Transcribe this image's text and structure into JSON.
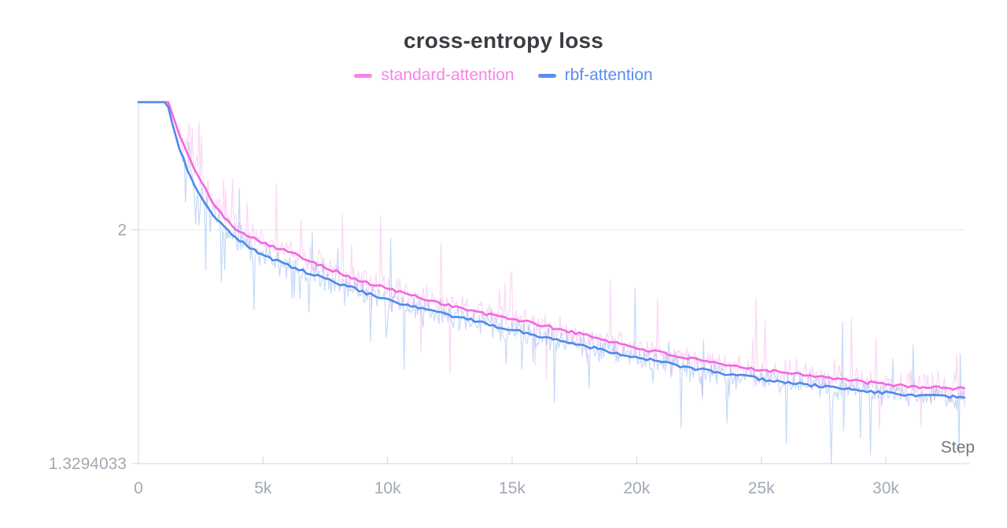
{
  "chart": {
    "title": "cross-entropy loss"
  },
  "chart_data": {
    "type": "line",
    "title": "cross-entropy loss",
    "xlabel": "Step",
    "ylabel": "",
    "legend_position": "top-center",
    "grid": "single horizontal gridline at y=2",
    "x_range": [
      0,
      33200
    ],
    "y_axis": {
      "min": 1.3294033,
      "max": 2.3658,
      "min_label": "1.3294033"
    },
    "x_ticks": [
      {
        "step": 0,
        "label": "0"
      },
      {
        "step": 5000,
        "label": "5k"
      },
      {
        "step": 10000,
        "label": "10k"
      },
      {
        "step": 15000,
        "label": "15k"
      },
      {
        "step": 20000,
        "label": "20k"
      },
      {
        "step": 25000,
        "label": "25k"
      },
      {
        "step": 30000,
        "label": "30k"
      }
    ],
    "y_ticks": [
      {
        "value": 2,
        "label": "2"
      },
      {
        "value": 1.3294033,
        "label": "1.3294033"
      }
    ],
    "series": [
      {
        "name": "standard-attention",
        "color": "#f566dc",
        "legend_color": "#f884e8",
        "smoothed": [
          [
            0,
            2.3658
          ],
          [
            1200,
            2.3658
          ],
          [
            1500,
            2.302
          ],
          [
            1800,
            2.245
          ],
          [
            2100,
            2.196
          ],
          [
            2400,
            2.152
          ],
          [
            2700,
            2.114
          ],
          [
            3000,
            2.078
          ],
          [
            3400,
            2.038
          ],
          [
            3800,
            2.008
          ],
          [
            4200,
            1.992
          ],
          [
            4600,
            1.977
          ],
          [
            5000,
            1.964
          ],
          [
            5500,
            1.95
          ],
          [
            6000,
            1.937
          ],
          [
            6500,
            1.923
          ],
          [
            7000,
            1.909
          ],
          [
            7500,
            1.893
          ],
          [
            8000,
            1.878
          ],
          [
            8500,
            1.863
          ],
          [
            9000,
            1.851
          ],
          [
            9500,
            1.841
          ],
          [
            10000,
            1.832
          ],
          [
            11000,
            1.811
          ],
          [
            12000,
            1.792
          ],
          [
            13000,
            1.774
          ],
          [
            14000,
            1.757
          ],
          [
            15000,
            1.745
          ],
          [
            16000,
            1.729
          ],
          [
            17000,
            1.713
          ],
          [
            18000,
            1.697
          ],
          [
            19000,
            1.679
          ],
          [
            20000,
            1.661
          ],
          [
            21000,
            1.647
          ],
          [
            22000,
            1.632
          ],
          [
            23000,
            1.618
          ],
          [
            24000,
            1.607
          ],
          [
            25000,
            1.599
          ],
          [
            26000,
            1.591
          ],
          [
            27000,
            1.583
          ],
          [
            28000,
            1.573
          ],
          [
            29000,
            1.564
          ],
          [
            30000,
            1.556
          ],
          [
            31000,
            1.551
          ],
          [
            32000,
            1.547
          ],
          [
            33200,
            1.544
          ]
        ]
      },
      {
        "name": "rbf-attention",
        "color": "#4f88ea",
        "legend_color": "#5a8df0",
        "smoothed": [
          [
            0,
            2.3658
          ],
          [
            1150,
            2.3658
          ],
          [
            1400,
            2.292
          ],
          [
            1700,
            2.222
          ],
          [
            2000,
            2.166
          ],
          [
            2300,
            2.121
          ],
          [
            2600,
            2.084
          ],
          [
            3000,
            2.044
          ],
          [
            3400,
            2.011
          ],
          [
            3800,
            1.984
          ],
          [
            4200,
            1.962
          ],
          [
            4600,
            1.944
          ],
          [
            5000,
            1.928
          ],
          [
            5500,
            1.912
          ],
          [
            6000,
            1.898
          ],
          [
            6500,
            1.884
          ],
          [
            7000,
            1.871
          ],
          [
            7500,
            1.859
          ],
          [
            8000,
            1.847
          ],
          [
            8500,
            1.835
          ],
          [
            9000,
            1.822
          ],
          [
            9500,
            1.809
          ],
          [
            10000,
            1.797
          ],
          [
            11000,
            1.779
          ],
          [
            12000,
            1.763
          ],
          [
            13000,
            1.746
          ],
          [
            14000,
            1.729
          ],
          [
            15000,
            1.713
          ],
          [
            16000,
            1.697
          ],
          [
            17000,
            1.681
          ],
          [
            18000,
            1.666
          ],
          [
            19000,
            1.65
          ],
          [
            20000,
            1.634
          ],
          [
            21000,
            1.62
          ],
          [
            22000,
            1.606
          ],
          [
            23000,
            1.593
          ],
          [
            24000,
            1.582
          ],
          [
            25000,
            1.572
          ],
          [
            26000,
            1.562
          ],
          [
            27000,
            1.554
          ],
          [
            28000,
            1.547
          ],
          [
            29000,
            1.539
          ],
          [
            30000,
            1.532
          ],
          [
            31000,
            1.526
          ],
          [
            32000,
            1.522
          ],
          [
            33200,
            1.519
          ]
        ]
      }
    ],
    "raw_traces": {
      "visible": true,
      "opacity_pink": 0.26,
      "opacity_blue": 0.32,
      "typical_deviation": 0.045,
      "spike_up_max": 0.2,
      "spike_down_max": 0.22,
      "plateau_end_step": 1250,
      "global_min": {
        "value": 1.3294033,
        "step": 27800,
        "series": "rbf-attention"
      }
    },
    "colors": {
      "title": "#3a3d42",
      "tick_labels": "#a2a9b4",
      "step_label": "#73767c",
      "axis_lines": "#cfd6e2",
      "gridline": "#e7e8ea"
    }
  }
}
